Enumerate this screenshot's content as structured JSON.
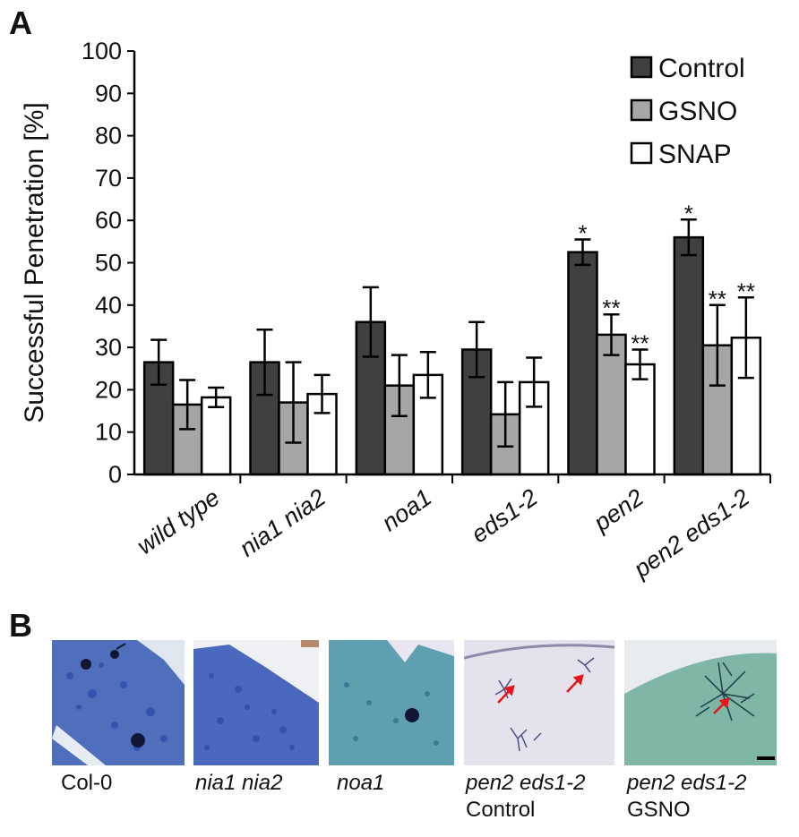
{
  "panel_a_label": "A",
  "panel_b_label": "B",
  "chart_data": {
    "type": "bar",
    "ylabel": "Successful Penetration [%]",
    "xlabel": "",
    "ylim": [
      0,
      100
    ],
    "yticks": [
      0,
      10,
      20,
      30,
      40,
      50,
      60,
      70,
      80,
      90,
      100
    ],
    "categories": [
      "wild type",
      "nia1 nia2",
      "noa1",
      "eds1-2",
      "pen2",
      "pen2 eds1-2"
    ],
    "series": [
      {
        "name": "Control",
        "color": "#404040",
        "values": [
          26.5,
          26.5,
          36,
          29.5,
          52.5,
          56
        ],
        "errors": [
          5.3,
          7.7,
          8.2,
          6.5,
          3,
          4.2
        ],
        "annotations": [
          "",
          "",
          "",
          "",
          "*",
          "*"
        ]
      },
      {
        "name": "GSNO",
        "color": "#a6a6a6",
        "values": [
          16.5,
          17,
          21,
          14.2,
          33,
          30.5
        ],
        "errors": [
          5.8,
          9.5,
          7.2,
          7.6,
          4.8,
          9.5
        ],
        "annotations": [
          "",
          "",
          "",
          "",
          "**",
          "**"
        ]
      },
      {
        "name": "SNAP",
        "color": "#ffffff",
        "values": [
          18.2,
          19,
          23.5,
          21.8,
          26,
          32.3
        ],
        "errors": [
          2.3,
          4.5,
          5.4,
          5.8,
          3.5,
          9.5
        ],
        "annotations": [
          "",
          "",
          "",
          "",
          "**",
          "**"
        ]
      }
    ],
    "legend_position": "top-right"
  },
  "micrographs": [
    {
      "caption_lines": [
        "Col-0"
      ],
      "italic": [
        false
      ]
    },
    {
      "caption_lines": [
        "nia1 nia2"
      ],
      "italic": [
        true
      ]
    },
    {
      "caption_lines": [
        "noa1"
      ],
      "italic": [
        true
      ]
    },
    {
      "caption_lines": [
        "pen2 eds1-2",
        "Control"
      ],
      "italic": [
        true,
        false
      ]
    },
    {
      "caption_lines": [
        "pen2 eds1-2",
        "GSNO"
      ],
      "italic": [
        true,
        false
      ]
    }
  ]
}
